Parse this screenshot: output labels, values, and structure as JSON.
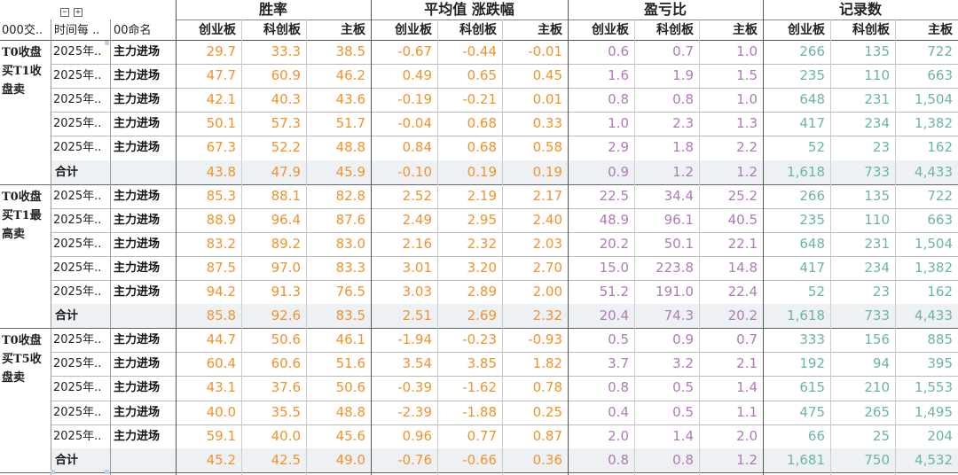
{
  "header": {
    "toggle_collapse": "−",
    "toggle_expand": "+",
    "col1_label": "000交..",
    "col2_label": "时间每 ..",
    "col3_label": "00命名",
    "groups": [
      "胜率",
      "平均值 涨跌幅",
      "盈亏比",
      "记录数"
    ],
    "subs": [
      "创业板",
      "科创板",
      "主板"
    ]
  },
  "colors": {
    "win_rate": "#f0932b",
    "avg_change": "#f0932b",
    "pl_ratio": "#b07ab8",
    "count": "#6bb5a6",
    "total_row_bg": "#eef1f4",
    "marker": "#b9d3ee"
  },
  "sections": [
    {
      "label": "T0收盘买T1收盘卖",
      "rows": [
        {
          "date": "2025年..",
          "name": "主力进场",
          "vals": [
            "29.7",
            "33.3",
            "38.5",
            "-0.67",
            "-0.44",
            "-0.01",
            "0.6",
            "0.7",
            "1.0",
            "266",
            "135",
            "722"
          ]
        },
        {
          "date": "2025年..",
          "name": "主力进场",
          "vals": [
            "47.7",
            "60.9",
            "46.2",
            "0.49",
            "0.65",
            "0.45",
            "1.6",
            "1.9",
            "1.5",
            "235",
            "110",
            "663"
          ]
        },
        {
          "date": "2025年..",
          "name": "主力进场",
          "vals": [
            "42.1",
            "40.3",
            "43.6",
            "-0.19",
            "-0.21",
            "0.01",
            "0.8",
            "0.8",
            "1.0",
            "648",
            "231",
            "1,504"
          ]
        },
        {
          "date": "2025年..",
          "name": "主力进场",
          "vals": [
            "50.1",
            "57.3",
            "51.7",
            "-0.04",
            "0.68",
            "0.33",
            "1.0",
            "2.3",
            "1.3",
            "417",
            "234",
            "1,382"
          ]
        },
        {
          "date": "2025年..",
          "name": "主力进场",
          "vals": [
            "67.3",
            "52.2",
            "48.8",
            "0.84",
            "0.68",
            "0.58",
            "2.9",
            "1.8",
            "2.2",
            "52",
            "23",
            "162"
          ]
        }
      ],
      "total": {
        "label": "合计",
        "vals": [
          "43.8",
          "47.9",
          "45.9",
          "-0.10",
          "0.19",
          "0.19",
          "0.9",
          "1.2",
          "1.2",
          "1,618",
          "733",
          "4,433"
        ]
      }
    },
    {
      "label": "T0收盘买T1最高卖",
      "rows": [
        {
          "date": "2025年..",
          "name": "主力进场",
          "vals": [
            "85.3",
            "88.1",
            "82.8",
            "2.52",
            "2.19",
            "2.17",
            "22.5",
            "34.4",
            "25.2",
            "266",
            "135",
            "722"
          ]
        },
        {
          "date": "2025年..",
          "name": "主力进场",
          "vals": [
            "88.9",
            "96.4",
            "87.6",
            "2.49",
            "2.95",
            "2.40",
            "48.9",
            "96.1",
            "40.5",
            "235",
            "110",
            "663"
          ]
        },
        {
          "date": "2025年..",
          "name": "主力进场",
          "vals": [
            "83.2",
            "89.2",
            "83.0",
            "2.16",
            "2.32",
            "2.03",
            "20.2",
            "50.1",
            "22.1",
            "648",
            "231",
            "1,504"
          ]
        },
        {
          "date": "2025年..",
          "name": "主力进场",
          "vals": [
            "87.5",
            "97.0",
            "83.3",
            "3.01",
            "3.20",
            "2.70",
            "15.0",
            "223.8",
            "14.8",
            "417",
            "234",
            "1,382"
          ]
        },
        {
          "date": "2025年..",
          "name": "主力进场",
          "vals": [
            "94.2",
            "91.3",
            "76.5",
            "3.03",
            "2.89",
            "2.00",
            "51.2",
            "191.0",
            "22.4",
            "52",
            "23",
            "162"
          ]
        }
      ],
      "total": {
        "label": "合计",
        "vals": [
          "85.8",
          "92.6",
          "83.5",
          "2.51",
          "2.69",
          "2.32",
          "20.4",
          "74.3",
          "20.2",
          "1,618",
          "733",
          "4,433"
        ]
      }
    },
    {
      "label": "T0收盘买T5收盘卖",
      "rows": [
        {
          "date": "2025年..",
          "name": "主力进场",
          "vals": [
            "44.7",
            "50.6",
            "46.1",
            "-1.94",
            "-0.23",
            "-0.93",
            "0.5",
            "0.9",
            "0.7",
            "333",
            "156",
            "885"
          ]
        },
        {
          "date": "2025年..",
          "name": "主力进场",
          "vals": [
            "60.4",
            "60.6",
            "51.6",
            "3.54",
            "3.85",
            "1.82",
            "3.7",
            "3.2",
            "2.1",
            "192",
            "94",
            "395"
          ]
        },
        {
          "date": "2025年..",
          "name": "主力进场",
          "vals": [
            "43.1",
            "37.6",
            "50.6",
            "-0.39",
            "-1.62",
            "0.78",
            "0.8",
            "0.5",
            "1.4",
            "615",
            "210",
            "1,553"
          ]
        },
        {
          "date": "2025年..",
          "name": "主力进场",
          "vals": [
            "40.0",
            "35.5",
            "48.8",
            "-2.39",
            "-1.88",
            "0.25",
            "0.4",
            "0.5",
            "1.1",
            "475",
            "265",
            "1,495"
          ]
        },
        {
          "date": "2025年..",
          "name": "主力进场",
          "vals": [
            "59.1",
            "40.0",
            "45.6",
            "0.96",
            "0.77",
            "0.87",
            "2.0",
            "1.4",
            "2.0",
            "66",
            "25",
            "204"
          ]
        }
      ],
      "total": {
        "label": "合计",
        "vals": [
          "45.2",
          "42.5",
          "49.0",
          "-0.76",
          "-0.66",
          "0.36",
          "0.8",
          "0.8",
          "1.2",
          "1,681",
          "750",
          "4,532"
        ]
      }
    }
  ]
}
